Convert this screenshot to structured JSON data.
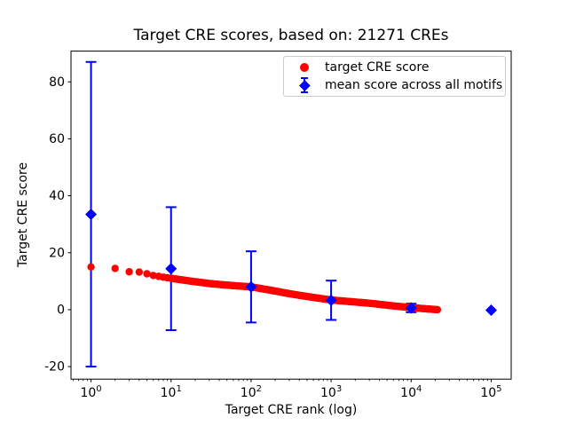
{
  "figure": {
    "title": "Target CRE scores, based on: 21271 CREs",
    "xlabel": "Target CRE rank (log)",
    "ylabel": "Target CRE score"
  },
  "legend": {
    "items": [
      {
        "label": "target CRE score",
        "marker": "circle",
        "color": "#ff0000"
      },
      {
        "label": "mean score across all motifs",
        "marker": "diamond-errorbar",
        "color": "#0000ff"
      }
    ]
  },
  "chart_data": {
    "type": "scatter",
    "title": "Target CRE scores, based on: 21271 CREs",
    "xlabel": "Target CRE rank (log)",
    "ylabel": "Target CRE score",
    "xscale": "log",
    "grid": false,
    "legend_position": "upper right",
    "xlim": [
      0.5623,
      177828
    ],
    "ylim": [
      -24.4,
      90.8
    ],
    "x_tick_base": "10",
    "x_tick_exponents": [
      0,
      1,
      2,
      3,
      4,
      5
    ],
    "y_ticks": [
      -20,
      0,
      20,
      40,
      60,
      80
    ],
    "n_cres": 21271,
    "series": [
      {
        "name": "target CRE score",
        "type": "scatter",
        "marker": "circle",
        "color": "#ff0000",
        "min_rank": 1,
        "max_rank": 21271,
        "curve_log10_rank": [
          0,
          0.301,
          0.477,
          0.602,
          0.699,
          0.778,
          0.845,
          0.903,
          0.954,
          1.0,
          1.25,
          1.5,
          1.75,
          2.0,
          2.25,
          2.5,
          2.75,
          3.0,
          3.25,
          3.5,
          3.75,
          4.0,
          4.3277
        ],
        "curve_score": [
          15.0,
          14.5,
          13.3,
          13.2,
          12.6,
          12.0,
          11.7,
          11.4,
          11.2,
          11.0,
          10.0,
          9.1,
          8.5,
          8.0,
          6.8,
          5.5,
          4.4,
          3.4,
          2.8,
          2.2,
          1.4,
          0.7,
          0.0
        ]
      },
      {
        "name": "mean score across all motifs",
        "type": "errorbar",
        "marker": "diamond",
        "color": "#0000ff",
        "x": [
          1,
          10,
          100,
          1000,
          10000,
          100000
        ],
        "y": [
          33.5,
          14.4,
          8.0,
          3.3,
          0.6,
          -0.2
        ],
        "yerr": [
          53.5,
          21.6,
          12.5,
          6.9,
          1.5,
          0.2
        ]
      }
    ]
  }
}
